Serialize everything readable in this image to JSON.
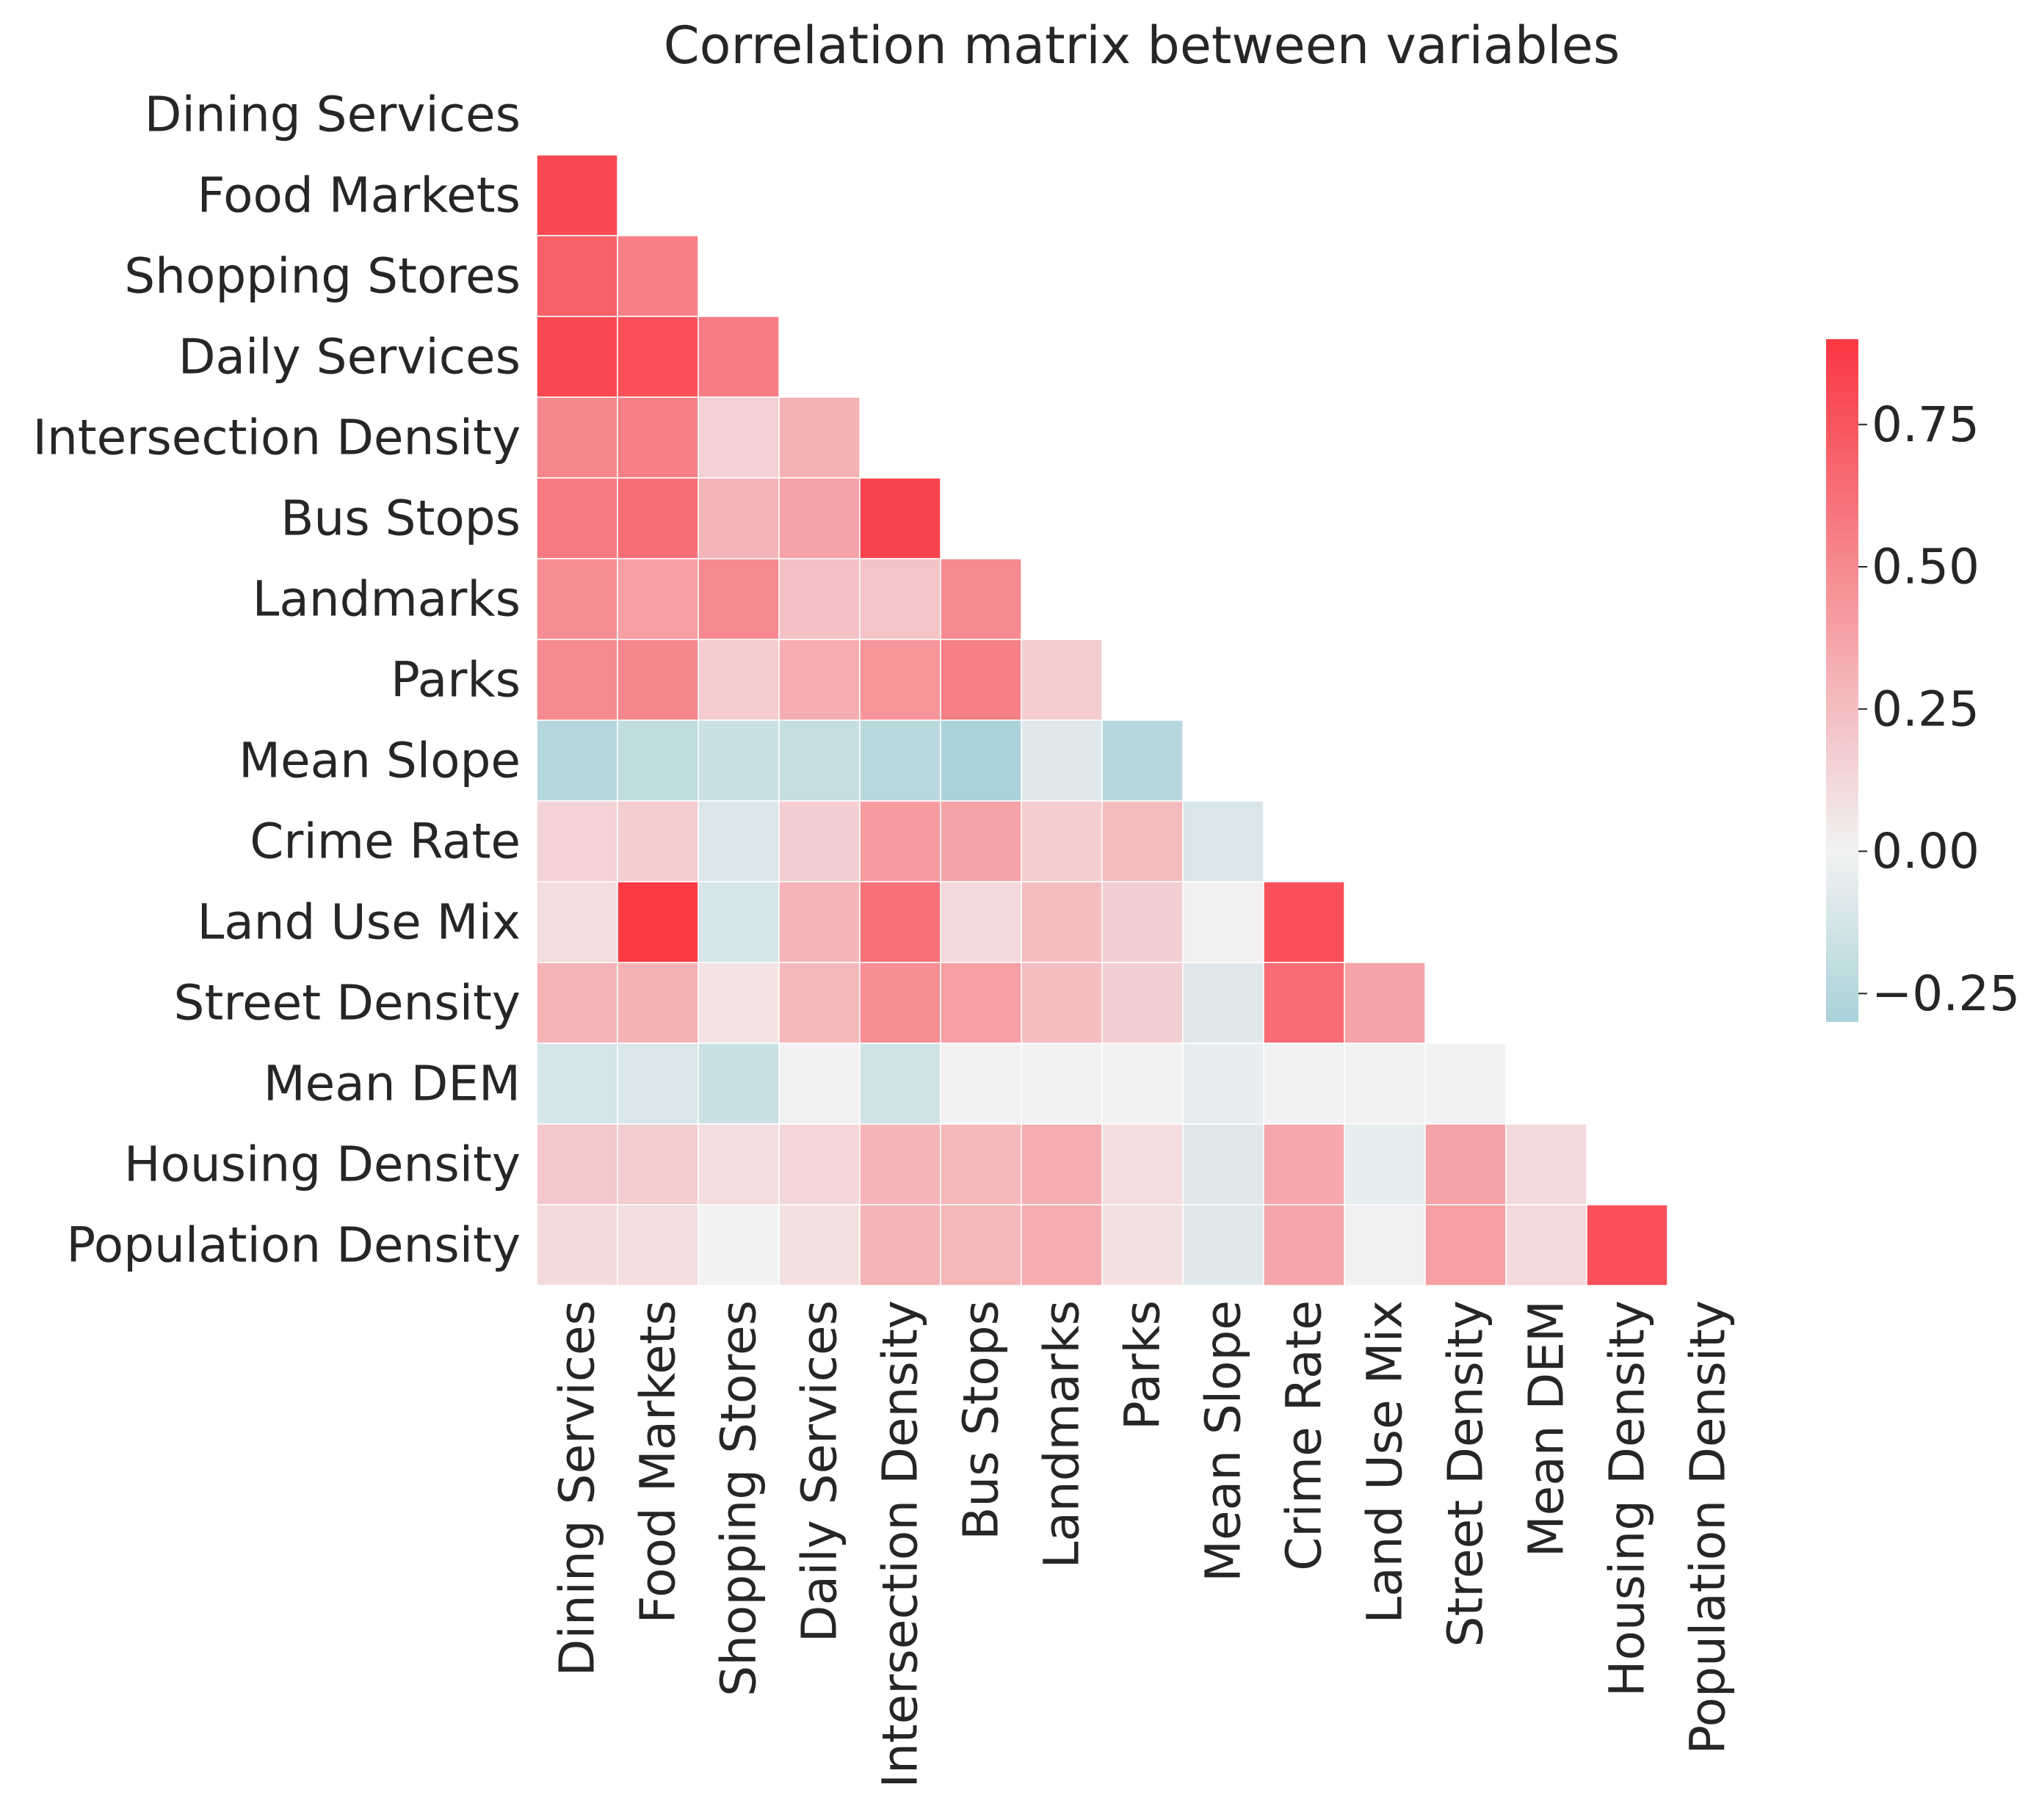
{
  "chart_data": {
    "type": "heatmap",
    "title": "Correlation matrix between variables",
    "variables": [
      "Dining Services",
      "Food Markets",
      "Shopping Stores",
      "Daily Services",
      "Intersection Density",
      "Bus Stops",
      "Landmarks",
      "Parks",
      "Mean Slope",
      "Crime Rate",
      "Land Use Mix",
      "Street Density",
      "Mean DEM",
      "Housing Density",
      "Population Density"
    ],
    "mask": "upper-triangle-and-diagonal",
    "matrix_lower": [
      [],
      [
        0.82
      ],
      [
        0.7,
        0.55
      ],
      [
        0.82,
        0.78,
        0.57
      ],
      [
        0.52,
        0.55,
        0.16,
        0.32
      ],
      [
        0.58,
        0.64,
        0.3,
        0.38,
        0.84
      ],
      [
        0.48,
        0.4,
        0.5,
        0.23,
        0.22,
        0.5
      ],
      [
        0.5,
        0.52,
        0.18,
        0.33,
        0.45,
        0.55,
        0.18
      ],
      [
        -0.25,
        -0.21,
        -0.17,
        -0.19,
        -0.24,
        -0.31,
        -0.08,
        -0.25
      ],
      [
        0.15,
        0.18,
        -0.1,
        0.17,
        0.42,
        0.38,
        0.18,
        0.26,
        -0.1
      ],
      [
        0.1,
        0.88,
        -0.12,
        0.3,
        0.62,
        0.12,
        0.25,
        0.17,
        0.01,
        0.78
      ],
      [
        0.3,
        0.31,
        0.07,
        0.28,
        0.48,
        0.4,
        0.25,
        0.17,
        -0.08,
        0.65,
        0.38
      ],
      [
        -0.12,
        -0.1,
        -0.17,
        0.0,
        -0.14,
        0.0,
        0.0,
        0.0,
        -0.04,
        0.0,
        0.0,
        0.0
      ],
      [
        0.2,
        0.18,
        0.1,
        0.13,
        0.3,
        0.28,
        0.33,
        0.1,
        -0.08,
        0.36,
        -0.05,
        0.38,
        0.12
      ],
      [
        0.11,
        0.1,
        0.0,
        0.08,
        0.3,
        0.28,
        0.33,
        0.08,
        -0.08,
        0.37,
        0.01,
        0.4,
        0.12,
        0.78
      ]
    ],
    "vmin": -0.3,
    "vmax": 0.9,
    "colormap": {
      "negative": "#a9d2d9",
      "center": "#f2f2f2",
      "positive": "#fa3742"
    },
    "colorbar_ticks": [
      {
        "value": 0.75,
        "label": "0.75"
      },
      {
        "value": 0.5,
        "label": "0.50"
      },
      {
        "value": 0.25,
        "label": "0.25"
      },
      {
        "value": 0.0,
        "label": "0.00"
      },
      {
        "value": -0.25,
        "label": "−0.25"
      }
    ],
    "xlabel": "",
    "ylabel": ""
  }
}
